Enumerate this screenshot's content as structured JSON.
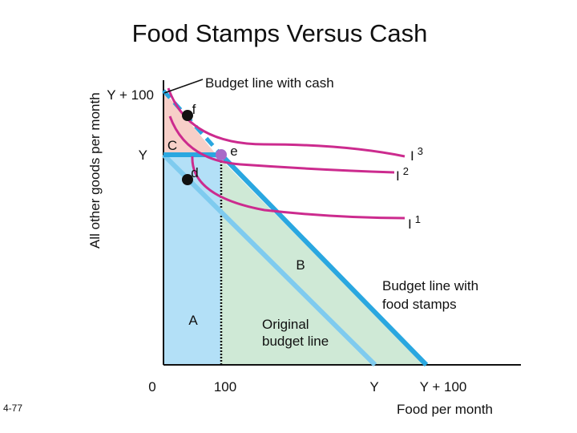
{
  "title": "Food Stamps Versus Cash",
  "slide_number": "4-77",
  "axes": {
    "y_label": "All other goods per month",
    "x_label": "Food per month",
    "origin": "0",
    "y_ticks": [
      "Y + 100",
      "Y"
    ],
    "x_ticks": [
      "100",
      "Y",
      "Y + 100"
    ]
  },
  "regions": {
    "a": "A",
    "b": "B",
    "c": "C"
  },
  "points": {
    "d": "d",
    "e": "e",
    "f": "f"
  },
  "curves": {
    "i1_base": "I",
    "i1_sup": "1",
    "i2_base": "I",
    "i2_sup": "2",
    "i3_base": "I",
    "i3_sup": "3"
  },
  "annotations": {
    "budget_cash": "Budget line with cash",
    "budget_stamps_line1": "Budget line with",
    "budget_stamps_line2": "food stamps",
    "original_line1": "Original",
    "original_line2": "budget line"
  },
  "colors": {
    "area_a": "#b3e0f7",
    "area_b": "#cfe9d6",
    "area_c": "#f7cfc8",
    "budget_line": "#2aa7e0",
    "indifference_curve": "#cc2b8e",
    "point": "#111111",
    "point_e": "#a86ac8"
  }
}
